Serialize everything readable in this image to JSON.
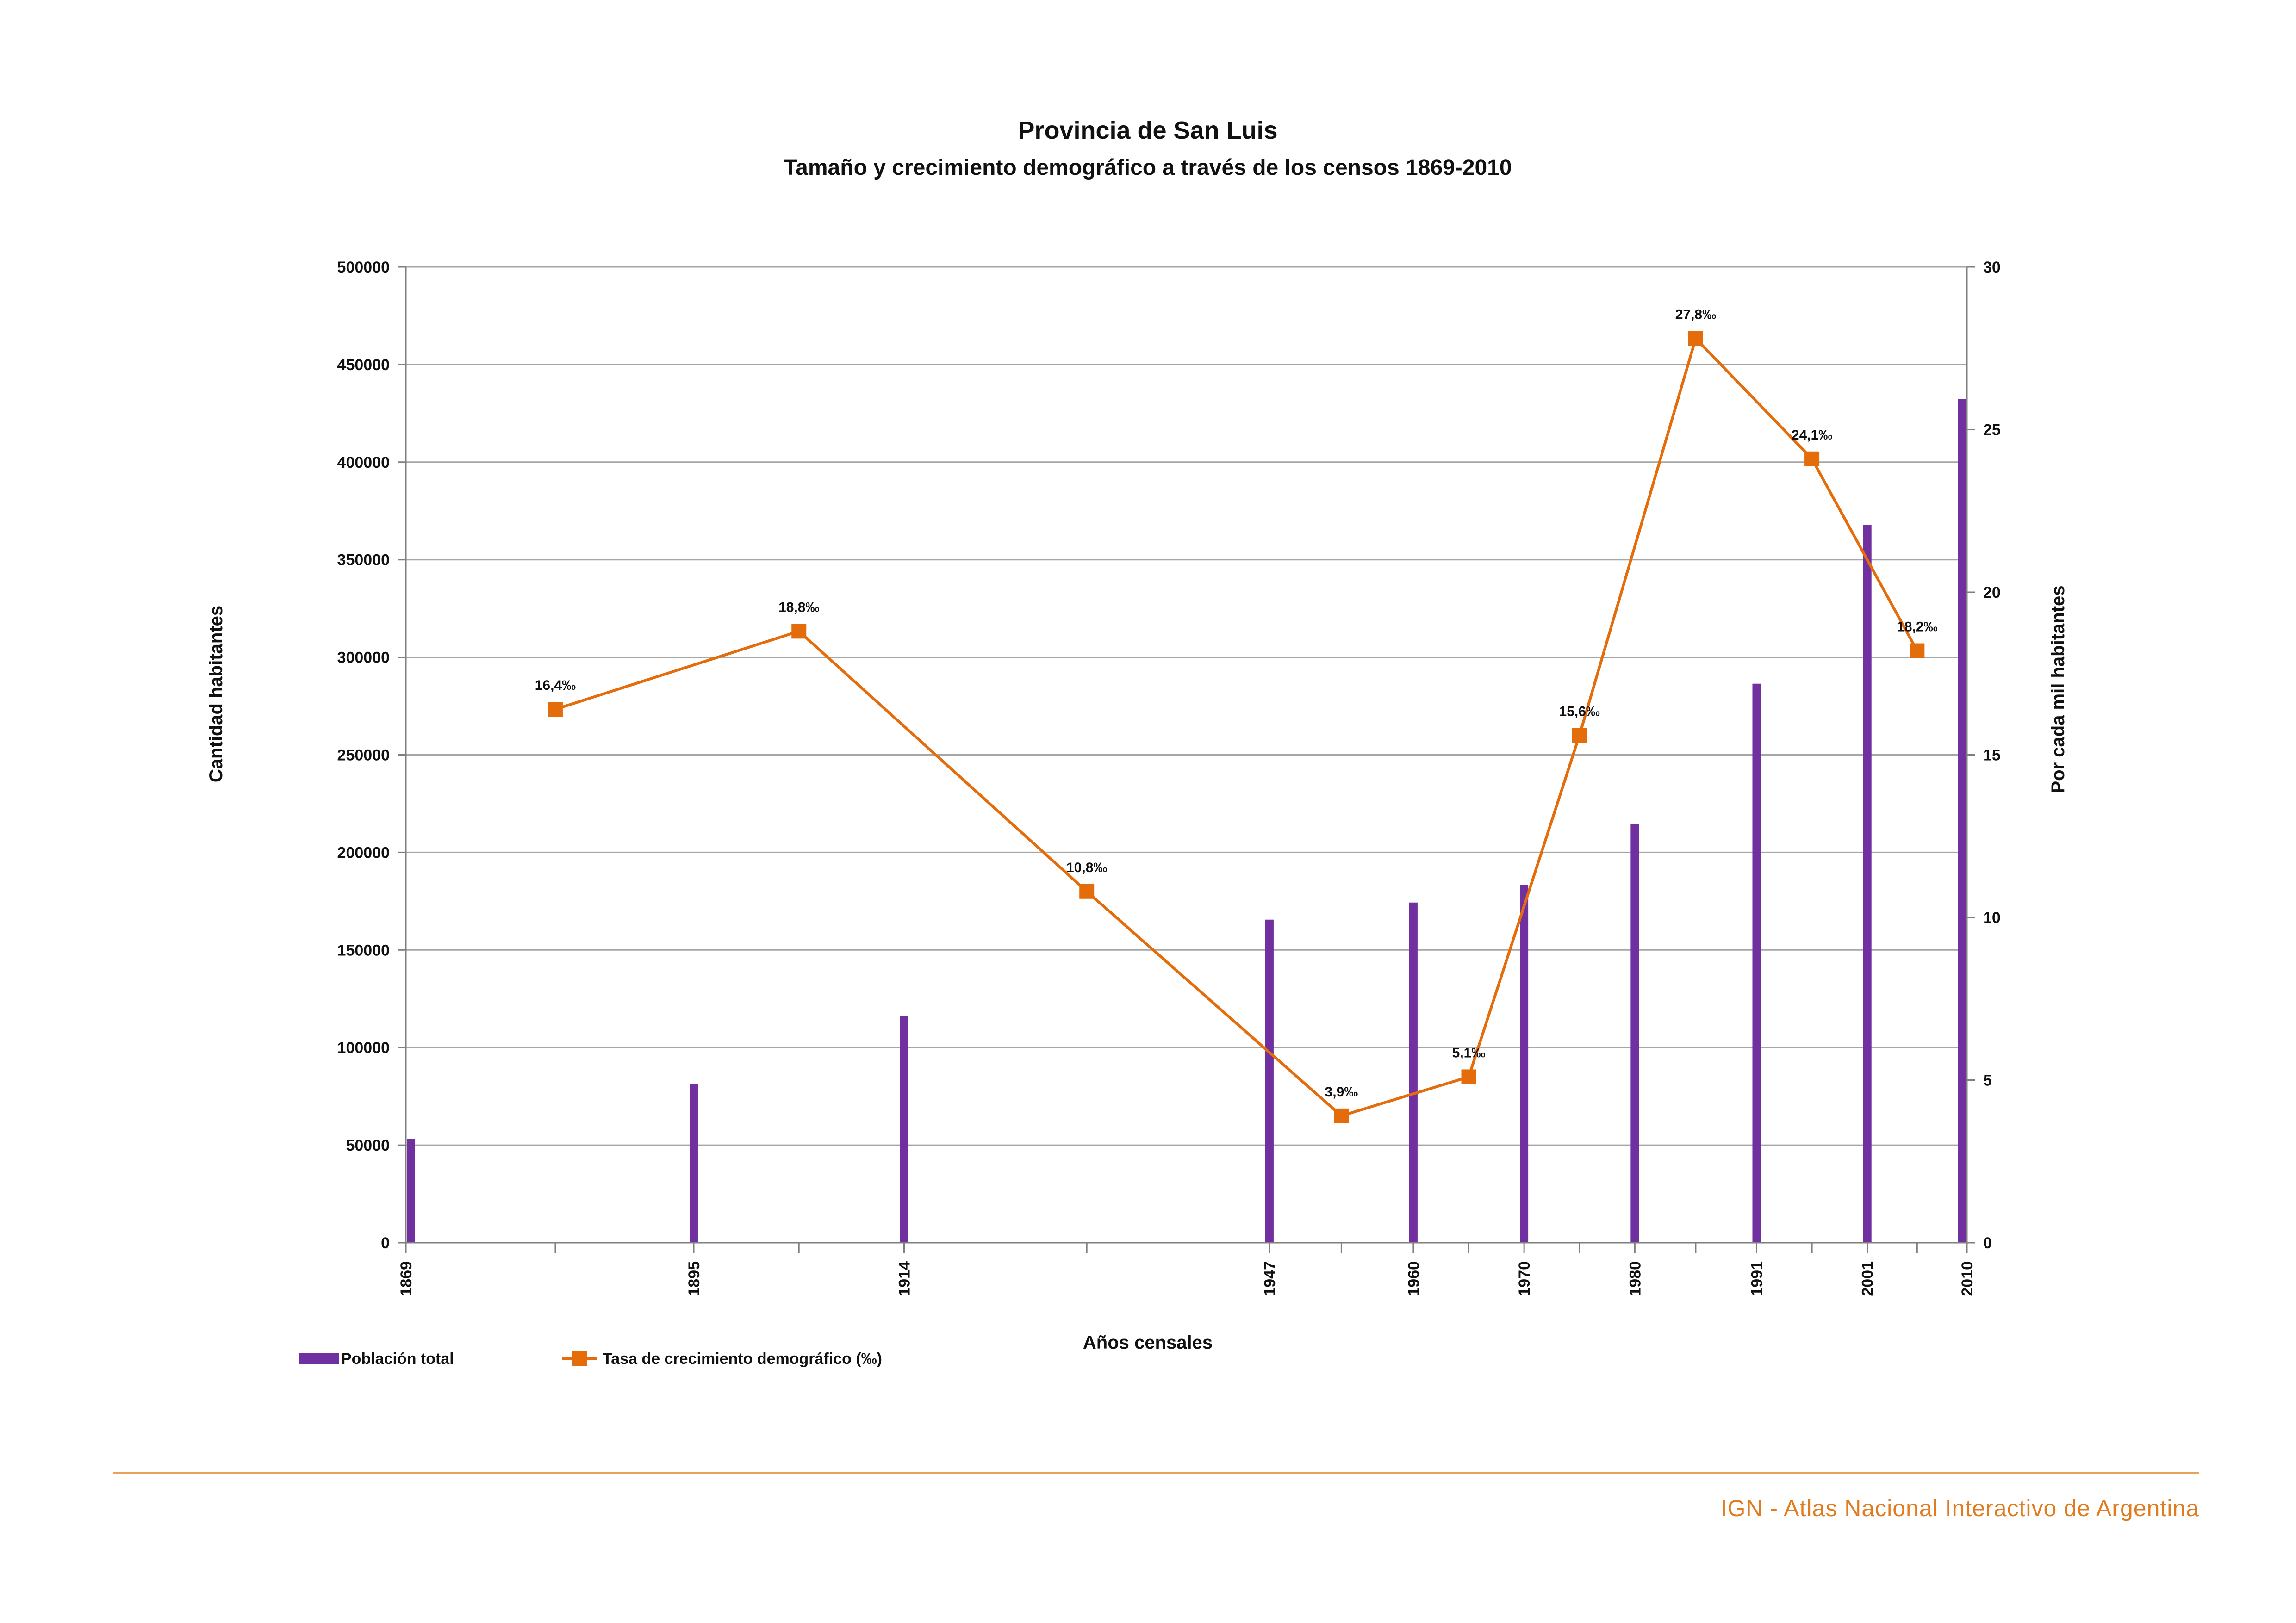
{
  "chart_data": {
    "type": "bar",
    "title": "Provincia de San Luis",
    "subtitle": "Tamaño y crecimiento demográfico a través de los censos 1869-2010",
    "xlabel": "Años censales",
    "ylabel_left": "Cantidad habitantes",
    "ylabel_right": "Por cada mil habitantes",
    "x_range": [
      1869,
      2010
    ],
    "ylim_left": [
      0,
      500000
    ],
    "ylim_right": [
      0,
      30
    ],
    "yticks_left": [
      "0",
      "50000",
      "100000",
      "150000",
      "200000",
      "250000",
      "300000",
      "350000",
      "400000",
      "450000",
      "500000"
    ],
    "yticks_right": [
      "0",
      "5",
      "10",
      "15",
      "20",
      "25",
      "30"
    ],
    "census_years": [
      "1869",
      "1895",
      "1914",
      "1947",
      "1960",
      "1970",
      "1980",
      "1991",
      "2001",
      "2010"
    ],
    "grid": true,
    "legend_position": "bottom-left",
    "series": [
      {
        "name": "Población total",
        "type": "bar",
        "axis": "left",
        "color": "#7030a0",
        "x": [
          1869,
          1895,
          1914,
          1947,
          1960,
          1970,
          1980,
          1991,
          2001,
          2010
        ],
        "values": [
          53294,
          81450,
          116266,
          165546,
          174316,
          183460,
          214416,
          286458,
          367933,
          432310
        ]
      },
      {
        "name": "Tasa de crecimiento demográfico (‰)",
        "type": "line",
        "axis": "right",
        "color": "#e46c0a",
        "x": [
          1882.5,
          1904.5,
          1930.5,
          1953.5,
          1965,
          1975,
          1985.5,
          1996,
          2005.5
        ],
        "values": [
          16.4,
          18.8,
          10.8,
          3.9,
          5.1,
          15.6,
          27.8,
          24.1,
          18.2
        ],
        "labels": [
          "16,4‰",
          "18,8‰",
          "10,8‰",
          "3,9‰",
          "5,1‰",
          "15,6‰",
          "27,8‰",
          "24,1‰",
          "18,2‰"
        ]
      }
    ]
  },
  "footer": "IGN - Atlas Nacional Interactivo de Argentina",
  "colors": {
    "footer_line": "#e8a25a",
    "grid": "#a6a6a6",
    "axis": "#7f7f7f"
  }
}
